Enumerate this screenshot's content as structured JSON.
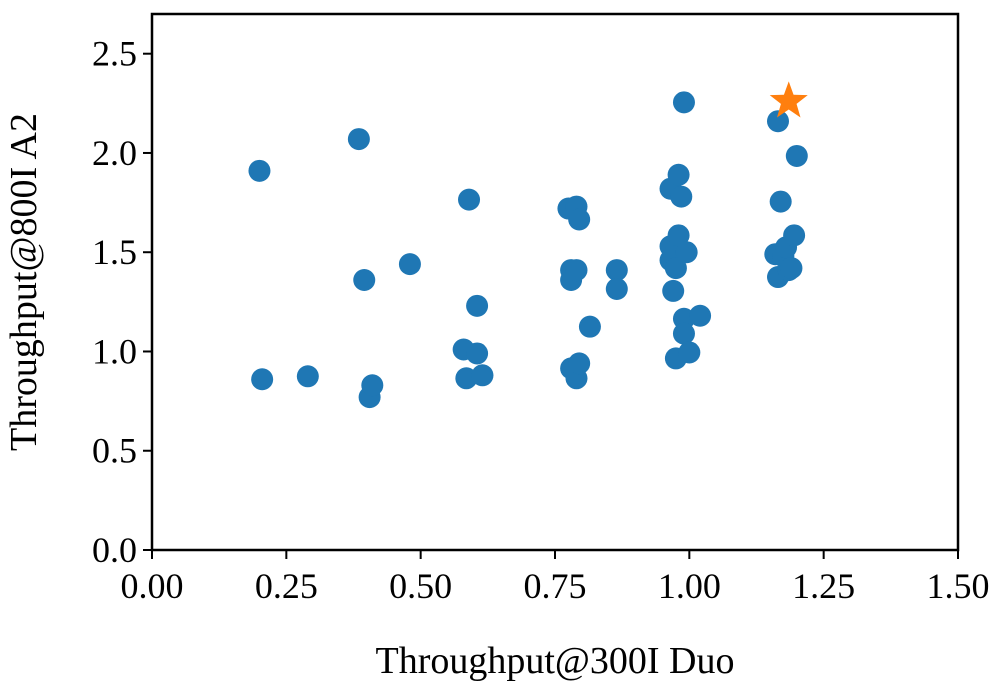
{
  "chart_data": {
    "type": "scatter",
    "xlabel": "Throughput@300I Duo",
    "ylabel": "Throughput@800I A2",
    "xlim": [
      0.0,
      1.5
    ],
    "ylim": [
      0.0,
      2.7
    ],
    "xticks": [
      "0.00",
      "0.25",
      "0.50",
      "0.75",
      "1.00",
      "1.25",
      "1.50"
    ],
    "xtick_values": [
      0.0,
      0.25,
      0.5,
      0.75,
      1.0,
      1.25,
      1.5
    ],
    "yticks": [
      "0.0",
      "0.5",
      "1.0",
      "1.5",
      "2.0",
      "2.5"
    ],
    "ytick_values": [
      0.0,
      0.5,
      1.0,
      1.5,
      2.0,
      2.5
    ],
    "grid": false,
    "legend": "none",
    "series": [
      {
        "marker": "circle",
        "color": "#1f77b4",
        "points": [
          [
            0.2,
            1.91
          ],
          [
            0.205,
            0.86
          ],
          [
            0.29,
            0.875
          ],
          [
            0.385,
            2.07
          ],
          [
            0.395,
            1.36
          ],
          [
            0.405,
            0.77
          ],
          [
            0.41,
            0.83
          ],
          [
            0.48,
            1.44
          ],
          [
            0.58,
            1.01
          ],
          [
            0.585,
            0.865
          ],
          [
            0.59,
            1.765
          ],
          [
            0.605,
            1.23
          ],
          [
            0.605,
            0.99
          ],
          [
            0.615,
            0.88
          ],
          [
            0.775,
            1.72
          ],
          [
            0.78,
            0.915
          ],
          [
            0.78,
            1.41
          ],
          [
            0.78,
            1.36
          ],
          [
            0.79,
            1.73
          ],
          [
            0.79,
            1.41
          ],
          [
            0.79,
            0.865
          ],
          [
            0.795,
            1.665
          ],
          [
            0.795,
            0.94
          ],
          [
            0.815,
            1.125
          ],
          [
            0.865,
            1.41
          ],
          [
            0.865,
            1.315
          ],
          [
            0.965,
            1.82
          ],
          [
            0.965,
            1.53
          ],
          [
            0.965,
            1.46
          ],
          [
            0.97,
            1.305
          ],
          [
            0.975,
            1.51
          ],
          [
            0.975,
            1.42
          ],
          [
            0.975,
            0.965
          ],
          [
            0.98,
            1.89
          ],
          [
            0.98,
            1.585
          ],
          [
            0.985,
            1.78
          ],
          [
            0.99,
            2.255
          ],
          [
            0.99,
            1.165
          ],
          [
            0.99,
            1.09
          ],
          [
            0.995,
            1.5
          ],
          [
            1.0,
            0.995
          ],
          [
            1.02,
            1.18
          ],
          [
            1.16,
            1.49
          ],
          [
            1.165,
            1.375
          ],
          [
            1.165,
            2.16
          ],
          [
            1.17,
            1.755
          ],
          [
            1.175,
            1.48
          ],
          [
            1.18,
            1.525
          ],
          [
            1.185,
            1.41
          ],
          [
            1.19,
            1.42
          ],
          [
            1.195,
            1.585
          ],
          [
            1.2,
            1.985
          ]
        ]
      },
      {
        "marker": "star",
        "color": "#ff7f0e",
        "points": [
          [
            1.185,
            2.26
          ]
        ]
      }
    ]
  }
}
